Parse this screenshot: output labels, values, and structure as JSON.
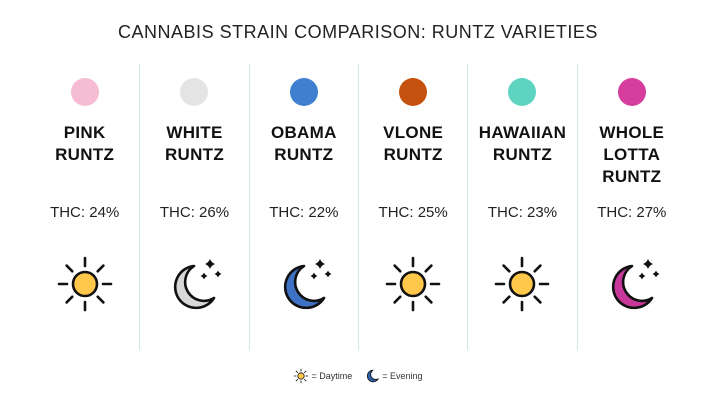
{
  "title": "CANNABIS STRAIN COMPARISON: RUNTZ VARIETIES",
  "strains": [
    {
      "name_lines": [
        "PINK",
        "RUNTZ"
      ],
      "thc": "THC: 24%",
      "color": "#f6bcd3",
      "time": "daytime",
      "icon": "sun-icon"
    },
    {
      "name_lines": [
        "WHITE",
        "RUNTZ"
      ],
      "thc": "THC: 26%",
      "color": "#e4e4e4",
      "time": "evening",
      "icon": "moon-icon",
      "moon_color": "#d8d8d8"
    },
    {
      "name_lines": [
        "OBAMA",
        "RUNTZ"
      ],
      "thc": "THC: 22%",
      "color": "#3e7fd0",
      "time": "evening",
      "icon": "moon-icon",
      "moon_color": "#3f72c4"
    },
    {
      "name_lines": [
        "VLONE",
        "RUNTZ"
      ],
      "thc": "THC: 25%",
      "color": "#c4520e",
      "time": "daytime",
      "icon": "sun-icon"
    },
    {
      "name_lines": [
        "HAWAIIAN",
        "RUNTZ"
      ],
      "thc": "THC: 23%",
      "color": "#5dd3c0",
      "time": "daytime",
      "icon": "sun-icon"
    },
    {
      "name_lines": [
        "WHOLE",
        "LOTTA",
        "RUNTZ"
      ],
      "thc": "THC: 27%",
      "color": "#d63d9d",
      "time": "evening",
      "icon": "moon-icon",
      "moon_color": "#c8389a"
    }
  ],
  "legend": {
    "daytime": "= Daytime",
    "evening": "= Evening"
  },
  "colors": {
    "sun_fill": "#ffc84a",
    "outline": "#111111",
    "divider": "#cfe9ea"
  }
}
